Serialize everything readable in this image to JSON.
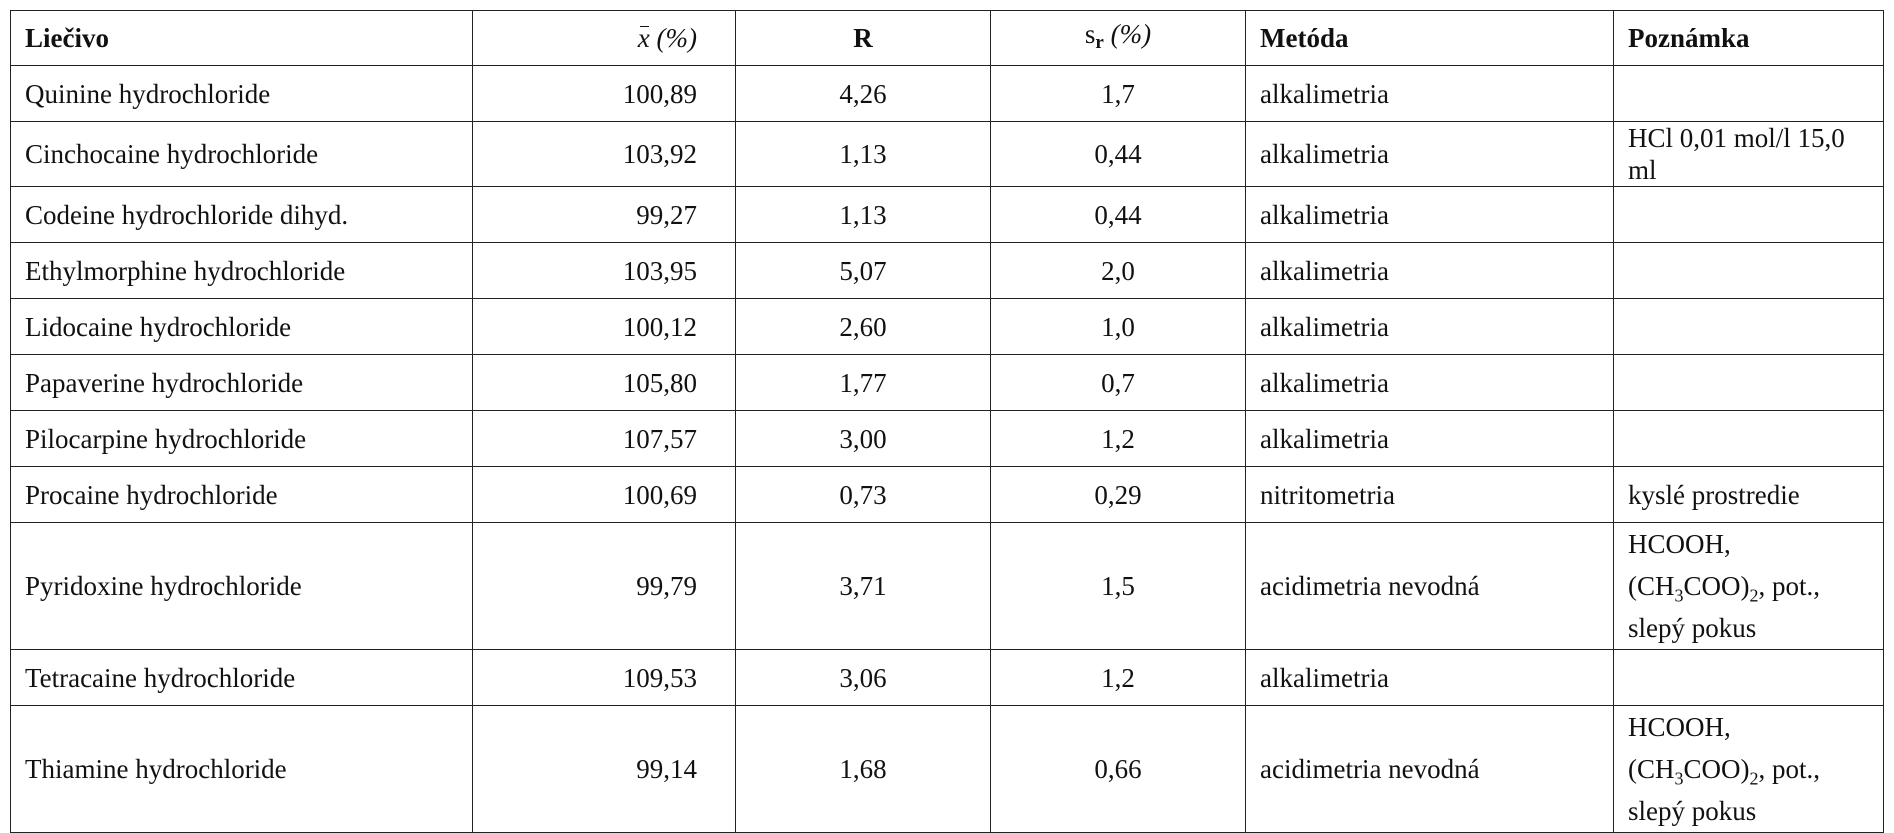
{
  "headers": {
    "drug": "Liečivo",
    "mean_symbol": "x",
    "mean_unit": "(%)",
    "r": "R",
    "sr_symbol": "s",
    "sr_sub": "r",
    "sr_unit": "(%)",
    "method": "Metóda",
    "note": "Poznámka"
  },
  "rows": [
    {
      "drug": "Quinine hydrochloride",
      "mean": "100,89",
      "r": "4,26",
      "sr": "1,7",
      "method": "alkalimetria",
      "note": ""
    },
    {
      "drug": "Cinchocaine hydrochloride",
      "mean": "103,92",
      "r": "1,13",
      "sr": "0,44",
      "method": "alkalimetria",
      "note": "HCl 0,01 mol/l 15,0 ml"
    },
    {
      "drug": "Codeine hydrochloride dihyd.",
      "mean": "99,27",
      "r": "1,13",
      "sr": "0,44",
      "method": "alkalimetria",
      "note": ""
    },
    {
      "drug": "Ethylmorphine hydrochloride",
      "mean": "103,95",
      "r": "5,07",
      "sr": "2,0",
      "method": "alkalimetria",
      "note": ""
    },
    {
      "drug": "Lidocaine hydrochloride",
      "mean": "100,12",
      "r": "2,60",
      "sr": "1,0",
      "method": "alkalimetria",
      "note": ""
    },
    {
      "drug": "Papaverine hydrochloride",
      "mean": "105,80",
      "r": "1,77",
      "sr": "0,7",
      "method": "alkalimetria",
      "note": ""
    },
    {
      "drug": "Pilocarpine hydrochloride",
      "mean": "107,57",
      "r": "3,00",
      "sr": "1,2",
      "method": "alkalimetria",
      "note": ""
    },
    {
      "drug": "Procaine hydrochloride",
      "mean": "100,69",
      "r": "0,73",
      "sr": "0,29",
      "method": "nitritometria",
      "note": "kyslé prostredie"
    },
    {
      "drug": "Pyridoxine hydrochloride",
      "mean": "99,79",
      "r": "3,71",
      "sr": "1,5",
      "method": "acidimetria nevodná",
      "note_parts": {
        "a": "HCOOH, (CH",
        "b": "3",
        "c": "COO)",
        "d": "2",
        "e": ", pot.,",
        "f": "slepý pokus"
      }
    },
    {
      "drug": "Tetracaine hydrochloride",
      "mean": "109,53",
      "r": "3,06",
      "sr": "1,2",
      "method": "alkalimetria",
      "note": ""
    },
    {
      "drug": "Thiamine hydrochloride",
      "mean": "99,14",
      "r": "1,68",
      "sr": "0,66",
      "method": "acidimetria nevodná",
      "note_parts": {
        "a": "HCOOH, (CH",
        "b": "3",
        "c": "COO)",
        "d": "2",
        "e": ", pot.,",
        "f": "slepý pokus"
      }
    }
  ]
}
